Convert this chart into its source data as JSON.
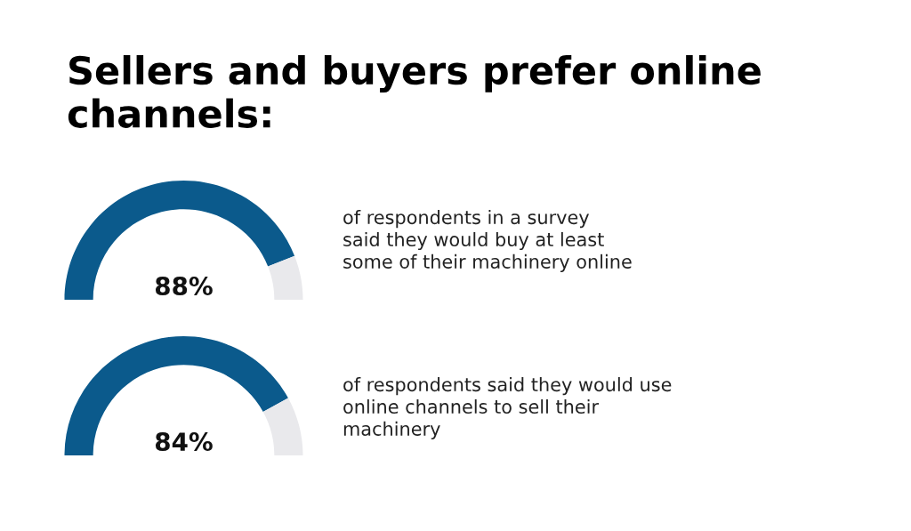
{
  "chart_data": [
    {
      "type": "donut",
      "title": "Sellers and buyers prefer online channels:",
      "categories": [
        null,
        null
      ],
      "values": [
        88,
        12
      ],
      "colors": [
        "#0b5a8c",
        "#e9e9ec"
      ],
      "value_labels": [
        "88%",
        null
      ],
      "annotations": [
        "of respondents in a survey\nsaid they would buy at least\nsome of their machinery online"
      ]
    },
    {
      "type": "donut",
      "categories": [
        null,
        null
      ],
      "values": [
        84,
        16
      ],
      "colors": [
        "#0b5a8c",
        "#e9e9ec"
      ],
      "value_labels": [
        "84%",
        null
      ],
      "annotations": [
        "of respondents said they would use\nonline channels to sell their\nmachinery"
      ]
    }
  ]
}
